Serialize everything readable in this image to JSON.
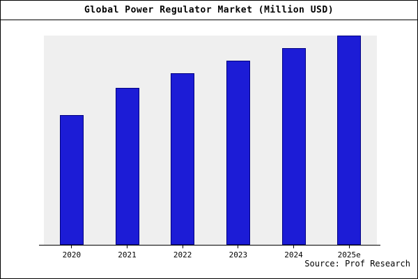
{
  "chart_data": {
    "type": "bar",
    "title": "Global Power Regulator Market (Million USD)",
    "categories": [
      "2020",
      "2021",
      "2022",
      "2023",
      "2024",
      "2025e"
    ],
    "values": [
      62,
      75,
      82,
      88,
      94,
      100
    ],
    "xlabel": "",
    "ylabel": "",
    "ylim": [
      0,
      100
    ],
    "grid": false,
    "legend": false,
    "bar_color": "#1c1cd6",
    "bar_border_color": "#000080",
    "plot_bg": "#efefef"
  },
  "source": "Source: Prof Research"
}
